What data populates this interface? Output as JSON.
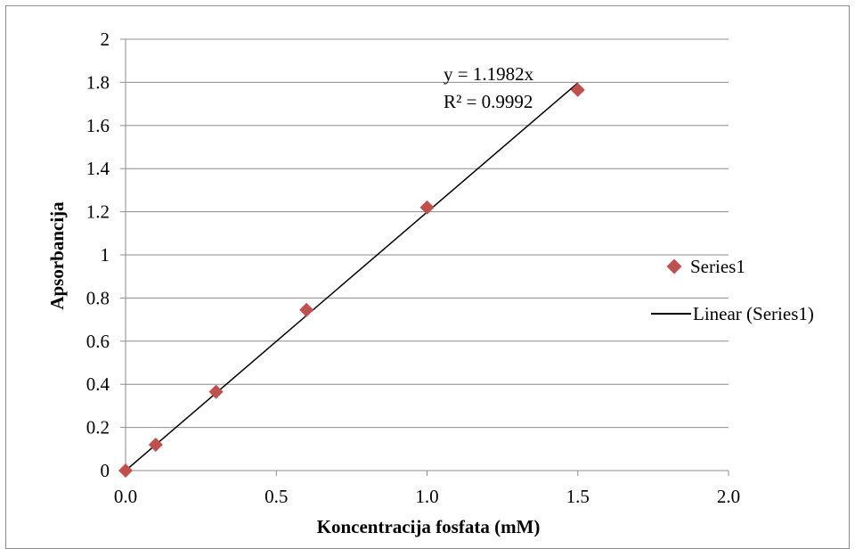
{
  "chart_data": {
    "type": "scatter",
    "xlabel": "Koncentracija fosfata (mM)",
    "ylabel": "Apsorbancija",
    "xlim": [
      0,
      2
    ],
    "ylim": [
      0,
      2
    ],
    "x_ticks": [
      "0.0",
      "0.5",
      "1.0",
      "1.5",
      "2.0"
    ],
    "y_ticks": [
      "0",
      "0.2",
      "0.4",
      "0.6",
      "0.8",
      "1",
      "1.2",
      "1.4",
      "1.6",
      "1.8",
      "2"
    ],
    "grid": "horizontal",
    "legend_position": "right",
    "series": [
      {
        "name": "Series1",
        "marker": "diamond",
        "color": "#c0504d",
        "x": [
          0,
          0.1,
          0.3,
          0.6,
          1.0,
          1.5
        ],
        "y": [
          0,
          0.12,
          0.365,
          0.745,
          1.22,
          1.765
        ]
      }
    ],
    "trendline": {
      "name": "Linear (Series1)",
      "color": "#000000",
      "slope": 1.1982,
      "x_range": [
        0,
        1.5
      ],
      "equation": "y = 1.1982x",
      "r_squared": "R² = 0.9992"
    }
  }
}
